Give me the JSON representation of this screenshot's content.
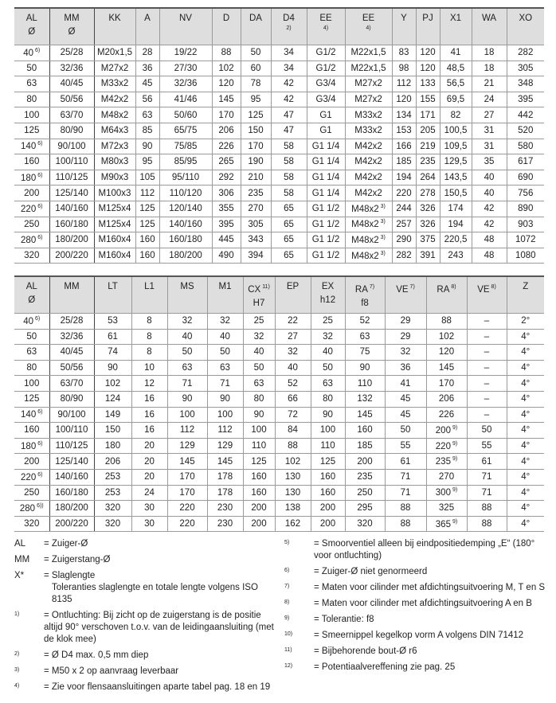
{
  "table1": {
    "headers": [
      {
        "h": "AL",
        "s": "Ø"
      },
      {
        "h": "MM",
        "s": "Ø"
      },
      {
        "h": "KK"
      },
      {
        "h": "A"
      },
      {
        "h": "NV"
      },
      {
        "h": "D"
      },
      {
        "h": "DA"
      },
      {
        "h": "D4",
        "n": "2)"
      },
      {
        "h": "EE",
        "n": "4)"
      },
      {
        "h": "EE",
        "n": "4)"
      },
      {
        "h": "Y"
      },
      {
        "h": "PJ"
      },
      {
        "h": "X1"
      },
      {
        "h": "WA"
      },
      {
        "h": "XO"
      }
    ],
    "rows": [
      [
        {
          "v": "40",
          "sup": "6)"
        },
        "25/28",
        "M20x1,5",
        "28",
        "19/22",
        "88",
        "50",
        "34",
        "G1/2",
        "M22x1,5",
        "83",
        "120",
        "41",
        "18",
        "282"
      ],
      [
        "50",
        "32/36",
        "M27x2",
        "36",
        "27/30",
        "102",
        "60",
        "34",
        "G1/2",
        "M22x1,5",
        "98",
        "120",
        "48,5",
        "18",
        "305"
      ],
      [
        "63",
        "40/45",
        "M33x2",
        "45",
        "32/36",
        "120",
        "78",
        "42",
        "G3/4",
        "M27x2",
        "112",
        "133",
        "56,5",
        "21",
        "348"
      ],
      [
        "80",
        "50/56",
        "M42x2",
        "56",
        "41/46",
        "145",
        "95",
        "42",
        "G3/4",
        "M27x2",
        "120",
        "155",
        "69,5",
        "24",
        "395"
      ],
      [
        "100",
        "63/70",
        "M48x2",
        "63",
        "50/60",
        "170",
        "125",
        "47",
        "G1",
        "M33x2",
        "134",
        "171",
        "82",
        "27",
        "442"
      ],
      [
        "125",
        "80/90",
        "M64x3",
        "85",
        "65/75",
        "206",
        "150",
        "47",
        "G1",
        "M33x2",
        "153",
        "205",
        "100,5",
        "31",
        "520"
      ],
      [
        {
          "v": "140",
          "sup": "6)"
        },
        "90/100",
        "M72x3",
        "90",
        "75/85",
        "226",
        "170",
        "58",
        "G1 1/4",
        "M42x2",
        "166",
        "219",
        "109,5",
        "31",
        "580"
      ],
      [
        "160",
        "100/110",
        "M80x3",
        "95",
        "85/95",
        "265",
        "190",
        "58",
        "G1 1/4",
        "M42x2",
        "185",
        "235",
        "129,5",
        "35",
        "617"
      ],
      [
        {
          "v": "180",
          "sup": "6)"
        },
        "110/125",
        "M90x3",
        "105",
        "95/110",
        "292",
        "210",
        "58",
        "G1 1/4",
        "M42x2",
        "194",
        "264",
        "143,5",
        "40",
        "690"
      ],
      [
        "200",
        "125/140",
        "M100x3",
        "112",
        "110/120",
        "306",
        "235",
        "58",
        "G1 1/4",
        "M42x2",
        "220",
        "278",
        "150,5",
        "40",
        "756"
      ],
      [
        {
          "v": "220",
          "sup": "6)"
        },
        "140/160",
        "M125x4",
        "125",
        "120/140",
        "355",
        "270",
        "65",
        "G1 1/2",
        {
          "v": "M48x2",
          "sup": "3)"
        },
        "244",
        "326",
        "174",
        "42",
        "890"
      ],
      [
        "250",
        "160/180",
        "M125x4",
        "125",
        "140/160",
        "395",
        "305",
        "65",
        "G1 1/2",
        {
          "v": "M48x2",
          "sup": "3)"
        },
        "257",
        "326",
        "194",
        "42",
        "903"
      ],
      [
        {
          "v": "280",
          "sup": "6)"
        },
        "180/200",
        "M160x4",
        "160",
        "160/180",
        "445",
        "343",
        "65",
        "G1 1/2",
        {
          "v": "M48x2",
          "sup": "3)"
        },
        "290",
        "375",
        "220,5",
        "48",
        "1072"
      ],
      [
        "320",
        "200/220",
        "M160x4",
        "160",
        "180/200",
        "490",
        "394",
        "65",
        "G1 1/2",
        {
          "v": "M48x2",
          "sup": "3)"
        },
        "282",
        "391",
        "243",
        "48",
        "1080"
      ]
    ]
  },
  "table2": {
    "headers": [
      {
        "h": "AL",
        "s": "Ø"
      },
      {
        "h": "MM"
      },
      {
        "h": "LT"
      },
      {
        "h": "L1"
      },
      {
        "h": "MS"
      },
      {
        "h": "M1"
      },
      {
        "h": "CX",
        "sup": "11)",
        "s": "H7"
      },
      {
        "h": "EP"
      },
      {
        "h": "EX",
        "s": "h12"
      },
      {
        "h": "RA",
        "sup": "7)",
        "s": "f8"
      },
      {
        "h": "VE",
        "sup": "7)"
      },
      {
        "h": "RA",
        "sup": "8)"
      },
      {
        "h": "VE",
        "sup": "8)"
      },
      {
        "h": "Z"
      }
    ],
    "rows": [
      [
        {
          "v": "40",
          "sup": "6)"
        },
        "25/28",
        "53",
        "8",
        "32",
        "32",
        "25",
        "22",
        "25",
        "52",
        "29",
        "88",
        "–",
        "2°"
      ],
      [
        "50",
        "32/36",
        "61",
        "8",
        "40",
        "40",
        "32",
        "27",
        "32",
        "63",
        "29",
        "102",
        "–",
        "4°"
      ],
      [
        "63",
        "40/45",
        "74",
        "8",
        "50",
        "50",
        "40",
        "32",
        "40",
        "75",
        "32",
        "120",
        "–",
        "4°"
      ],
      [
        "80",
        "50/56",
        "90",
        "10",
        "63",
        "63",
        "50",
        "40",
        "50",
        "90",
        "36",
        "145",
        "–",
        "4°"
      ],
      [
        "100",
        "63/70",
        "102",
        "12",
        "71",
        "71",
        "63",
        "52",
        "63",
        "110",
        "41",
        "170",
        "–",
        "4°"
      ],
      [
        "125",
        "80/90",
        "124",
        "16",
        "90",
        "90",
        "80",
        "66",
        "80",
        "132",
        "45",
        "206",
        "–",
        "4°"
      ],
      [
        {
          "v": "140",
          "sup": "6)"
        },
        "90/100",
        "149",
        "16",
        "100",
        "100",
        "90",
        "72",
        "90",
        "145",
        "45",
        "226",
        "–",
        "4°"
      ],
      [
        "160",
        "100/110",
        "150",
        "16",
        "112",
        "112",
        "100",
        "84",
        "100",
        "160",
        "50",
        {
          "v": "200",
          "sup": "9)"
        },
        "50",
        "4°"
      ],
      [
        {
          "v": "180",
          "sup": "6)"
        },
        "110/125",
        "180",
        "20",
        "129",
        "129",
        "110",
        "88",
        "110",
        "185",
        "55",
        {
          "v": "220",
          "sup": "9)"
        },
        "55",
        "4°"
      ],
      [
        "200",
        "125/140",
        "206",
        "20",
        "145",
        "145",
        "125",
        "102",
        "125",
        "200",
        "61",
        {
          "v": "235",
          "sup": "9)"
        },
        "61",
        "4°"
      ],
      [
        {
          "v": "220",
          "sup": "6)"
        },
        "140/160",
        "253",
        "20",
        "170",
        "178",
        "160",
        "130",
        "160",
        "235",
        "71",
        "270",
        "71",
        "4°"
      ],
      [
        "250",
        "160/180",
        "253",
        "24",
        "170",
        "178",
        "160",
        "130",
        "160",
        "250",
        "71",
        {
          "v": "300",
          "sup": "9)"
        },
        "71",
        "4°"
      ],
      [
        {
          "v": "280",
          "sup": "6))"
        },
        "180/200",
        "320",
        "30",
        "220",
        "230",
        "200",
        "138",
        "200",
        "295",
        "88",
        "325",
        "88",
        "4°"
      ],
      [
        "320",
        "200/220",
        "320",
        "30",
        "220",
        "230",
        "200",
        "162",
        "200",
        "320",
        "88",
        {
          "v": "365",
          "sup": "9)"
        },
        "88",
        "4°"
      ]
    ]
  },
  "notes_left": [
    {
      "k": "AL",
      "t": "= Zuiger-Ø"
    },
    {
      "k": "MM",
      "t": "= Zuigerstang-Ø"
    },
    {
      "k": "X*",
      "t": "= Slaglengte",
      "t2": "Toleranties slaglengte en totale lengte volgens ISO 8135"
    },
    {
      "k": "1)",
      "sm": true,
      "t": "= Ontluchting: Bij zicht op de zuigerstang is de positie altijd 90° verschoven t.o.v. van de leidingaansluiting (met de klok mee)"
    },
    {
      "k": "2)",
      "sm": true,
      "t": "= Ø D4 max. 0,5 mm diep"
    },
    {
      "k": "3)",
      "sm": true,
      "t": "= M50 x 2 op aanvraag leverbaar"
    },
    {
      "k": "4)",
      "sm": true,
      "t": "= Zie voor flensaansluitingen aparte tabel pag. 18 en 19"
    }
  ],
  "notes_right": [
    {
      "k": "5)",
      "sm": true,
      "t": "= Smoorventiel alleen bij eindpositiedemping „E“ (180° voor ontluchting)"
    },
    {
      "k": "6)",
      "sm": true,
      "t": "= Zuiger-Ø niet genormeerd"
    },
    {
      "k": "7)",
      "sm": true,
      "t": "= Maten voor cilinder met afdichtingsuitvoering M, T en S"
    },
    {
      "k": "8)",
      "sm": true,
      "t": "= Maten voor cilinder met afdichtingsuitvoering A en B"
    },
    {
      "k": "9)",
      "sm": true,
      "t": "= Tolerantie: f8"
    },
    {
      "k": "10)",
      "sm": true,
      "t": "= Smeernippel kegelkop vorm A volgens DIN 71412"
    },
    {
      "k": "11)",
      "sm": true,
      "t": "= Bijbehorende bout-Ø r6"
    },
    {
      "k": "12)",
      "sm": true,
      "t": "= Potentiaalvereffening zie pag. 25"
    }
  ]
}
